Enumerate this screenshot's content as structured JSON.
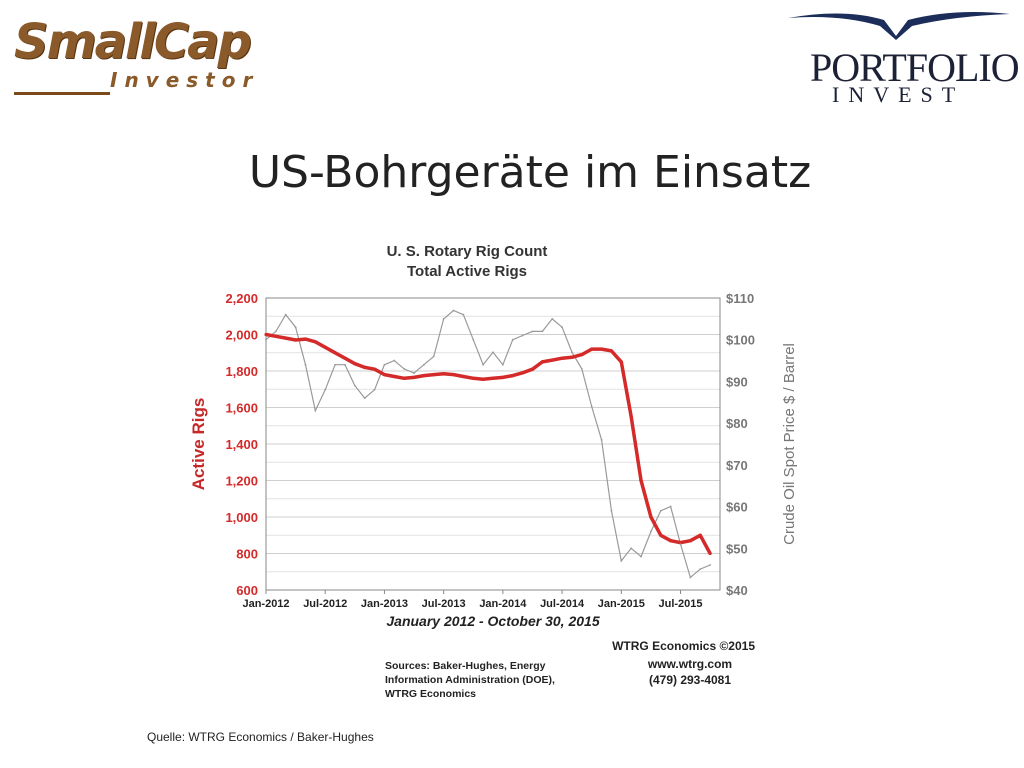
{
  "logos": {
    "smallcap_top": "SmallCap",
    "smallcap_bottom": "Investor",
    "portfolio_main": "PORTFOLIO",
    "portfolio_sub": "INVEST"
  },
  "slide": {
    "title": "US-Bohrgeräte im Einsatz",
    "caption": "Quelle: WTRG Economics / Baker-Hughes"
  },
  "colors": {
    "rigs": "#d42a2a",
    "oil": "#9a9a9a",
    "grid": "#cfcfcf"
  },
  "chart_data": {
    "type": "line",
    "title": "U. S. Rotary Rig Count",
    "subtitle": "Total Active Rigs",
    "xlabel": "January 2012 - October 30, 2015",
    "ylabel": "Active Rigs",
    "y2label": "Crude Oil Spot Price $ / Barrel",
    "x_ticks": [
      "Jan-2012",
      "Jul-2012",
      "Jan-2013",
      "Jul-2013",
      "Jan-2014",
      "Jul-2014",
      "Jan-2015",
      "Jul-2015"
    ],
    "ylim": [
      600,
      2200
    ],
    "y_ticks": [
      "600",
      "800",
      "1,000",
      "1,200",
      "1,400",
      "1,600",
      "1,800",
      "2,000",
      "2,200"
    ],
    "y2lim": [
      40,
      110
    ],
    "y2_ticks": [
      "$40",
      "$50",
      "$60",
      "$70",
      "$80",
      "$90",
      "$100",
      "$110"
    ],
    "grid": true,
    "series": [
      {
        "axis": "left",
        "x": [
          "2012-01",
          "2012-02",
          "2012-03",
          "2012-04",
          "2012-05",
          "2012-06",
          "2012-07",
          "2012-08",
          "2012-09",
          "2012-10",
          "2012-11",
          "2012-12",
          "2013-01",
          "2013-02",
          "2013-03",
          "2013-04",
          "2013-05",
          "2013-06",
          "2013-07",
          "2013-08",
          "2013-09",
          "2013-10",
          "2013-11",
          "2013-12",
          "2014-01",
          "2014-02",
          "2014-03",
          "2014-04",
          "2014-05",
          "2014-06",
          "2014-07",
          "2014-08",
          "2014-09",
          "2014-10",
          "2014-11",
          "2014-12",
          "2015-01",
          "2015-02",
          "2015-03",
          "2015-04",
          "2015-05",
          "2015-06",
          "2015-07",
          "2015-08",
          "2015-09",
          "2015-10"
        ],
        "values": [
          2000,
          1990,
          1980,
          1970,
          1975,
          1960,
          1930,
          1900,
          1870,
          1840,
          1820,
          1810,
          1780,
          1770,
          1760,
          1765,
          1775,
          1780,
          1785,
          1780,
          1770,
          1760,
          1755,
          1760,
          1765,
          1775,
          1790,
          1810,
          1850,
          1860,
          1870,
          1875,
          1890,
          1920,
          1920,
          1910,
          1850,
          1550,
          1200,
          1000,
          900,
          870,
          860,
          870,
          900,
          800
        ]
      },
      {
        "axis": "right",
        "x": [
          "2012-01",
          "2012-02",
          "2012-03",
          "2012-04",
          "2012-05",
          "2012-06",
          "2012-07",
          "2012-08",
          "2012-09",
          "2012-10",
          "2012-11",
          "2012-12",
          "2013-01",
          "2013-02",
          "2013-03",
          "2013-04",
          "2013-05",
          "2013-06",
          "2013-07",
          "2013-08",
          "2013-09",
          "2013-10",
          "2013-11",
          "2013-12",
          "2014-01",
          "2014-02",
          "2014-03",
          "2014-04",
          "2014-05",
          "2014-06",
          "2014-07",
          "2014-08",
          "2014-09",
          "2014-10",
          "2014-11",
          "2014-12",
          "2015-01",
          "2015-02",
          "2015-03",
          "2015-04",
          "2015-05",
          "2015-06",
          "2015-07",
          "2015-08",
          "2015-09",
          "2015-10"
        ],
        "values": [
          100,
          102,
          106,
          103,
          94,
          83,
          88,
          94,
          94,
          89,
          86,
          88,
          94,
          95,
          93,
          92,
          94,
          96,
          105,
          107,
          106,
          100,
          94,
          97,
          94,
          100,
          101,
          102,
          102,
          105,
          103,
          97,
          93,
          84,
          76,
          59,
          47,
          50,
          48,
          54,
          59,
          60,
          51,
          43,
          45,
          46
        ]
      }
    ],
    "annotations": {
      "publisher": "WTRG Economics  ©2015",
      "website": "www.wtrg.com",
      "phone": "(479) 293-4081",
      "sources": [
        "Sources: Baker-Hughes, Energy",
        "Information Administration (DOE),",
        "WTRG Economics"
      ]
    }
  }
}
